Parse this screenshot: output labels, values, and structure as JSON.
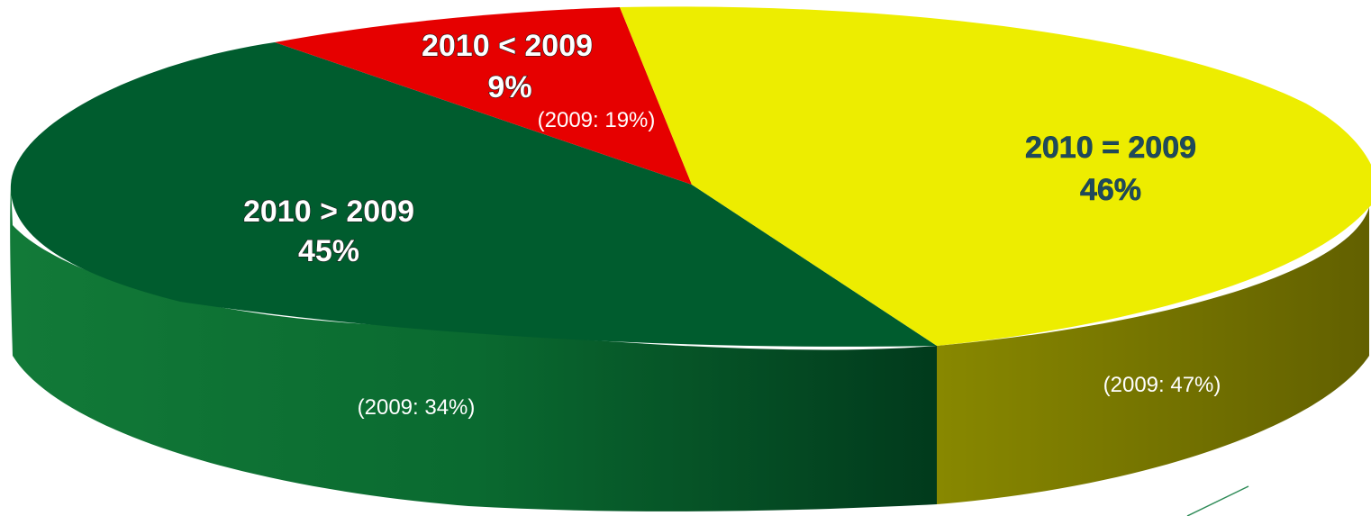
{
  "chart_data": {
    "type": "pie",
    "title": "",
    "slices": [
      {
        "category": "2010 < 2009",
        "value": 9,
        "value_label": "9%",
        "previous_label": "(2009: 19%)",
        "color": "#e60000",
        "side_color": "#a00000"
      },
      {
        "category": "2010 = 2009",
        "value": 46,
        "value_label": "46%",
        "previous_label": "(2009: 47%)",
        "color": "#eded00",
        "side_color": "#7a7a00"
      },
      {
        "category": "2010 > 2009",
        "value": 45,
        "value_label": "45%",
        "previous_label": "(2009: 34%)",
        "color": "#005c2e",
        "side_color": "#0c5a2a"
      }
    ],
    "legend": "none",
    "style": "3d"
  }
}
